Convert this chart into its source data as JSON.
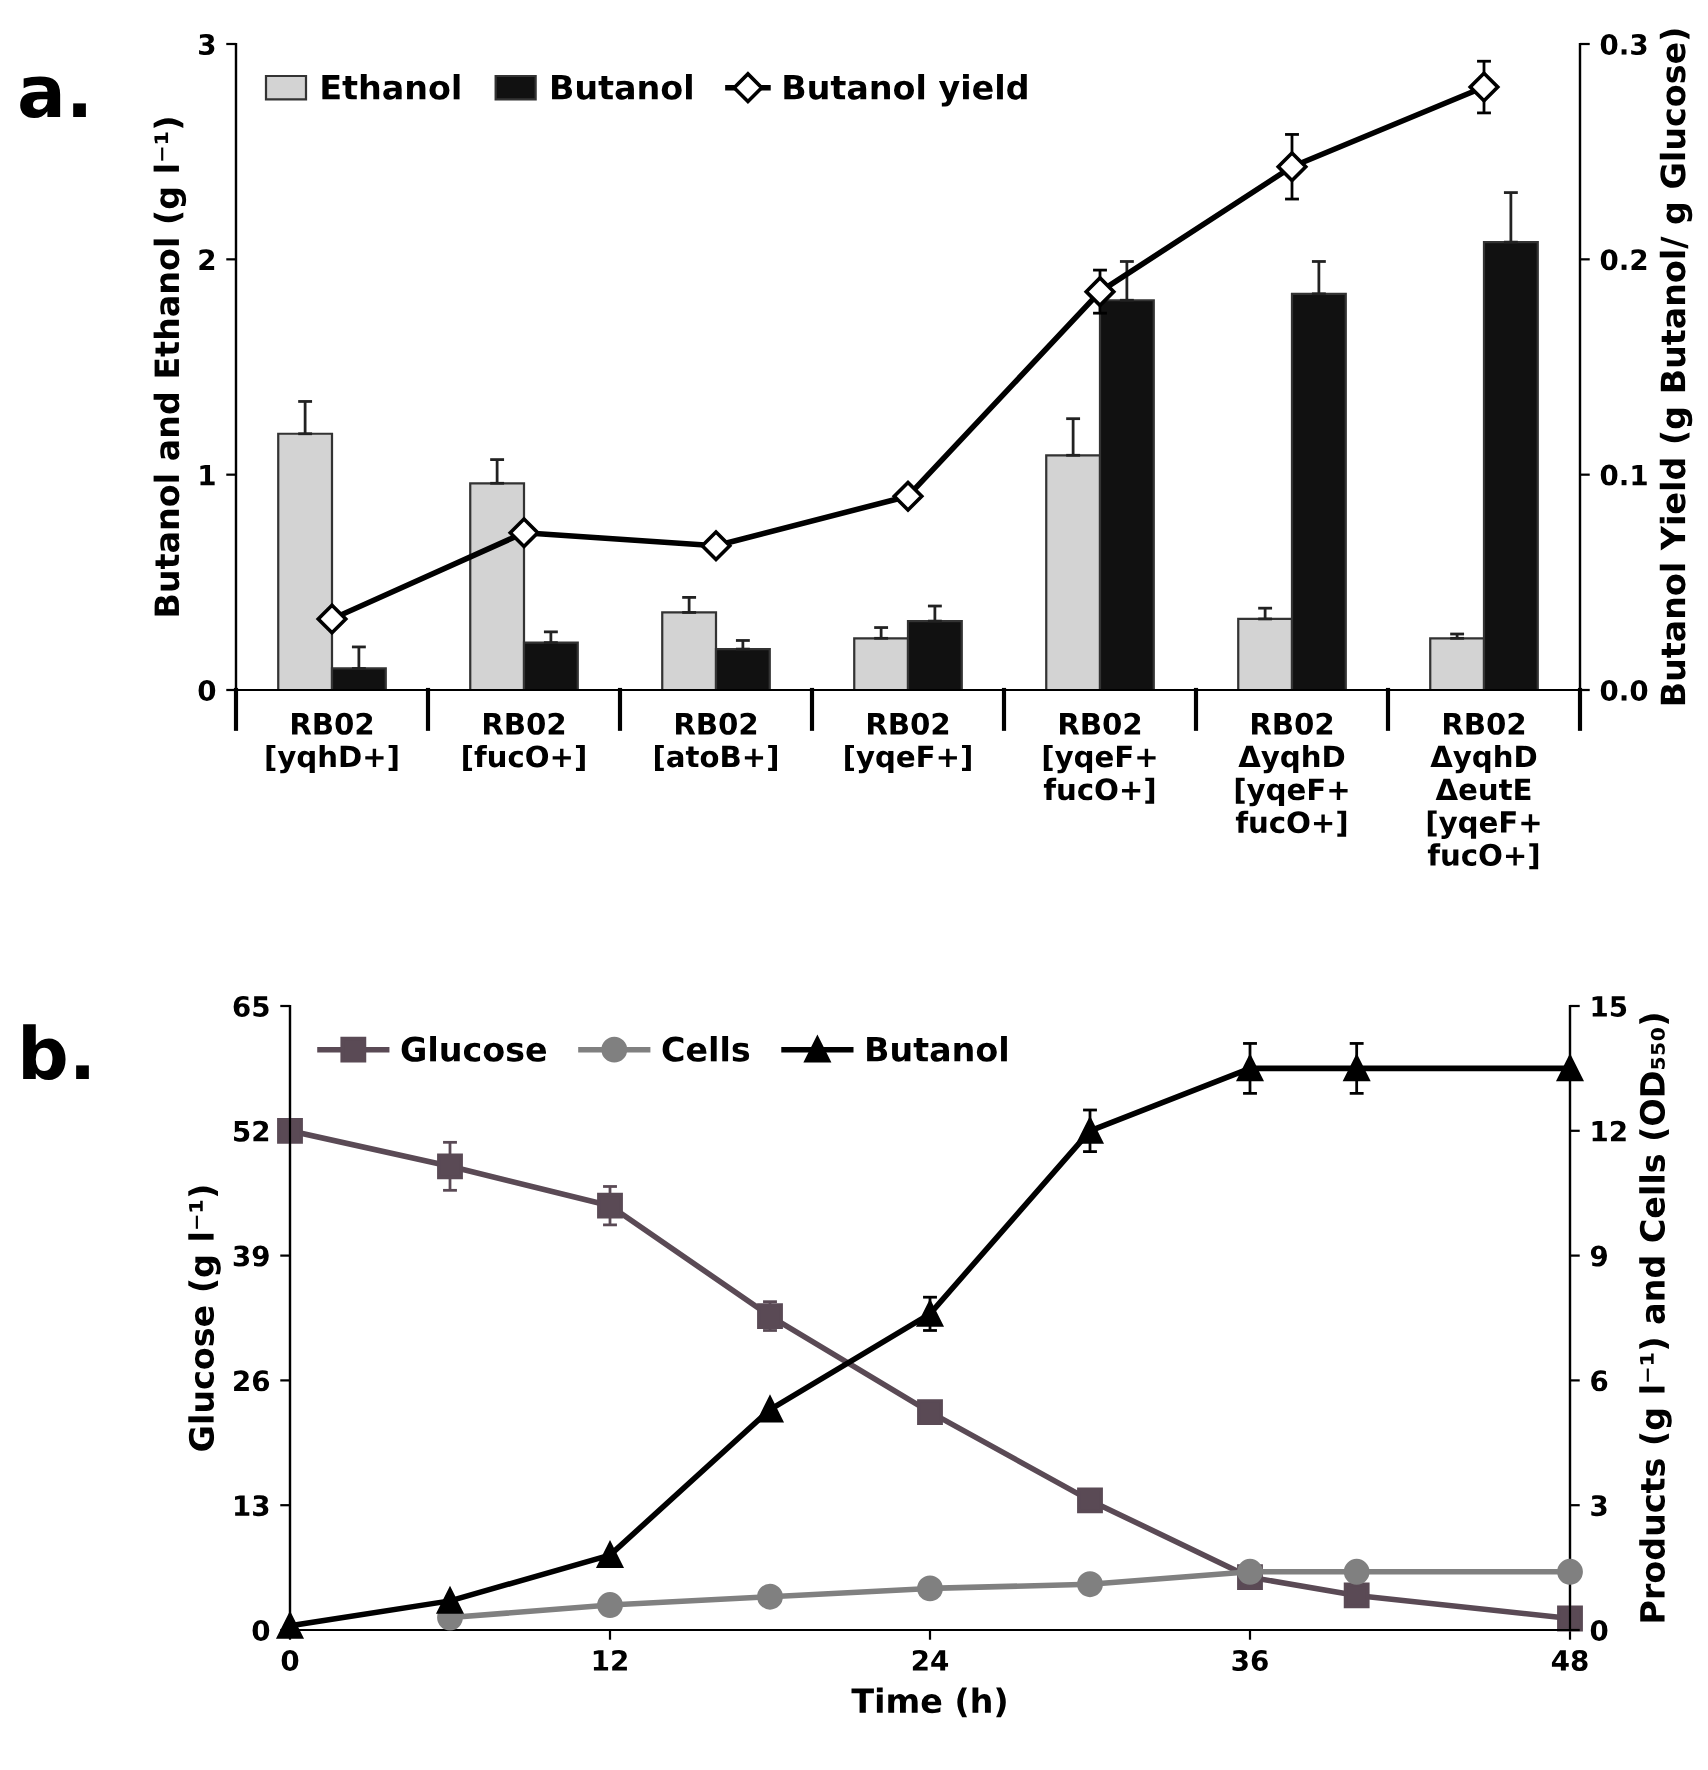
{
  "chart_data": [
    {
      "type": "bar",
      "annotations": [
        "a."
      ],
      "ylabel": "Butanol and Ethanol (g l⁻¹)",
      "y2label": "Butanol Yield (g Butanol/ g Glucose)",
      "categories": [
        "RB02\n[yqhD+]",
        "RB02\n[fucO+]",
        "RB02\n[atoB+]",
        "RB02\n[yqeF+]",
        "RB02\n[yqeF+\nfucO+]",
        "RB02\nΔyqhD\n[yqeF+\nfucO+]",
        "RB02\nΔyqhD\nΔeutE\n[yqeF+\nfucO+]"
      ],
      "series": [
        {
          "name": "Ethanol",
          "type": "bar",
          "color": "#d3d3d3",
          "values": [
            1.19,
            0.96,
            0.36,
            0.24,
            1.09,
            0.33,
            0.24
          ],
          "errors": [
            0.15,
            0.11,
            0.07,
            0.05,
            0.17,
            0.05,
            0.02
          ]
        },
        {
          "name": "Butanol",
          "type": "bar",
          "color": "#111111",
          "values": [
            0.1,
            0.22,
            0.19,
            0.32,
            1.81,
            1.84,
            2.08
          ],
          "errors": [
            0.1,
            0.05,
            0.04,
            0.07,
            0.18,
            0.15,
            0.23
          ]
        },
        {
          "name": "Butanol yield",
          "type": "line",
          "axis": "y2",
          "marker": "diamond",
          "color": "#000000",
          "values": [
            0.033,
            0.073,
            0.067,
            0.09,
            0.185,
            0.243,
            0.28
          ],
          "errors": [
            null,
            null,
            null,
            null,
            0.01,
            0.015,
            0.012
          ]
        }
      ],
      "ylim": [
        0,
        3
      ],
      "yticks": [
        0,
        1,
        2,
        3
      ],
      "y2lim": [
        0,
        0.3
      ],
      "y2ticks": [
        {
          "value": 0,
          "label": "0.0"
        },
        {
          "value": 0.1,
          "label": "0.1"
        },
        {
          "value": 0.2,
          "label": "0.2"
        },
        {
          "value": 0.3,
          "label": "0.3"
        }
      ],
      "legend": "top left",
      "grid": false
    },
    {
      "type": "line",
      "annotations": [
        "b."
      ],
      "xlabel": "Time (h)",
      "ylabel": "Glucose (g l⁻¹)",
      "y2label": "Products (g l⁻¹) and Cells (OD₅₅₀)",
      "x": [
        0,
        6,
        12,
        18,
        24,
        30,
        36,
        40,
        48
      ],
      "series": [
        {
          "name": "Glucose",
          "marker": "square",
          "color": "#5a4a55",
          "values": [
            52,
            48.3,
            44.2,
            32.7,
            22.7,
            13.5,
            5.5,
            3.6,
            1.2
          ],
          "errors": [
            null,
            2.5,
            2,
            1.5,
            null,
            null,
            null,
            null,
            null
          ]
        },
        {
          "name": "Cells",
          "marker": "circle",
          "axis": "y2",
          "color": "#808080",
          "values": [
            null,
            0.3,
            0.6,
            0.8,
            1.0,
            1.1,
            1.4,
            1.4,
            1.4
          ]
        },
        {
          "name": "Butanol",
          "marker": "triangle",
          "axis": "y2",
          "color": "#000000",
          "values": [
            0.1,
            0.7,
            1.8,
            5.3,
            7.6,
            12,
            13.5,
            13.5,
            13.5
          ],
          "errors": [
            null,
            null,
            null,
            null,
            0.4,
            0.5,
            0.6,
            0.6,
            null
          ]
        }
      ],
      "xlim": [
        0,
        48
      ],
      "xticks": [
        0,
        12,
        24,
        36,
        48
      ],
      "ylim": [
        0,
        65
      ],
      "yticks": [
        0,
        13,
        26,
        39,
        52,
        65
      ],
      "y2lim": [
        0,
        15
      ],
      "y2ticks": [
        0,
        3,
        6,
        9,
        12,
        15
      ],
      "legend": "top left",
      "grid": false
    }
  ]
}
